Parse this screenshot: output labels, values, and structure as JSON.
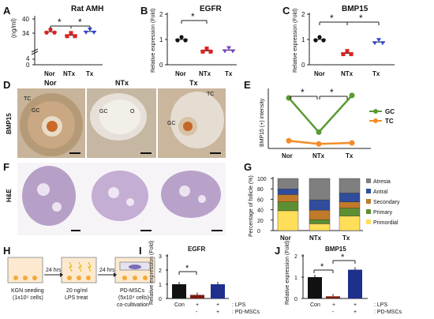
{
  "panel_labels": [
    "A",
    "B",
    "C",
    "D",
    "E",
    "F",
    "G",
    "H",
    "I",
    "J"
  ],
  "panelA": {
    "title": "Rat AMH",
    "ylabel": "(ng/ml)",
    "yticks": [
      "40",
      "34",
      "4",
      "0"
    ],
    "sig": [
      "*",
      "*"
    ]
  },
  "panelB": {
    "title": "EGFR",
    "ylabel": "Relative expression\n(Fold)",
    "yticks": [
      "2",
      "1",
      "0"
    ],
    "sig": [
      "*"
    ]
  },
  "panelC": {
    "title": "BMP15",
    "ylabel": "Relative expression\n(Fold)",
    "yticks": [
      "2",
      "1",
      "0"
    ],
    "sig": [
      "*",
      "*"
    ]
  },
  "groups": [
    "Nor",
    "NTx",
    "Tx"
  ],
  "panelD": {
    "row_label": "BMP15",
    "cols": [
      "Nor",
      "NTx",
      "Tx"
    ],
    "annotations": [
      "TC",
      "GC",
      "O"
    ]
  },
  "panelF": {
    "row_label": "H&E"
  },
  "panelE": {
    "ylabel": "BMP15 (+) intensity",
    "legend": [
      "GC",
      "TC"
    ],
    "colors": [
      "#5b9a32",
      "#f28c28"
    ],
    "sig": [
      "*",
      "*"
    ]
  },
  "panelG": {
    "ylabel": "Percentage of follicle\n(%)",
    "yticks": [
      "100",
      "80",
      "60",
      "40",
      "20",
      "0"
    ],
    "legend": [
      "Atresia",
      "Antral",
      "Secondary",
      "Primary",
      "Primordial"
    ],
    "colors": [
      "#7f7f7f",
      "#2f4d9c",
      "#c07a2a",
      "#5e8f32",
      "#ffde5a"
    ]
  },
  "panelH": {
    "steps": [
      "KGN seeding\n(1x10⁵ cells)",
      "20 ng/ml\nLPS treat",
      "PD-MSCs\n(5x10⁴ cells)\nco-cultivation"
    ],
    "arrows": [
      "24 hrs",
      "24 hrs"
    ]
  },
  "panelI": {
    "title": "EGFR",
    "ylabel": "Relative expression\n(Fold)",
    "yticks": [
      "3",
      "2",
      "1",
      "0"
    ],
    "sig": [
      "*"
    ],
    "rows": [
      {
        "name": "LPS",
        "marks": [
          "",
          "+",
          "+"
        ]
      },
      {
        "name": "PD-MSCs",
        "marks": [
          "",
          "-",
          "+"
        ]
      }
    ],
    "con": "Con"
  },
  "panelJ": {
    "title": "BMP15",
    "ylabel": "Relative expression\n(Fold)",
    "yticks": [
      "2",
      "1",
      "0"
    ],
    "sig": [
      "*",
      "*"
    ],
    "rows": [
      {
        "name": "LPS",
        "marks": [
          "",
          "+",
          "+"
        ]
      },
      {
        "name": "PD-MSCs",
        "marks": [
          "",
          "-",
          "+"
        ]
      }
    ],
    "con": "Con"
  },
  "chart_data": [
    {
      "id": "A",
      "type": "scatter",
      "title": "Rat AMH",
      "ylabel": "(ng/ml)",
      "categories": [
        "Nor",
        "NTx",
        "Tx"
      ],
      "series": [
        {
          "values": [
            34.5,
            33.2,
            34.6
          ]
        }
      ]
    },
    {
      "id": "B",
      "type": "scatter",
      "title": "EGFR",
      "ylabel": "Relative expression (Fold)",
      "categories": [
        "Nor",
        "NTx",
        "Tx"
      ],
      "ylim": [
        0,
        2
      ],
      "series": [
        {
          "values": [
            1.0,
            0.55,
            0.58
          ]
        }
      ]
    },
    {
      "id": "C",
      "type": "scatter",
      "title": "BMP15",
      "ylabel": "Relative expression (Fold)",
      "categories": [
        "Nor",
        "NTx",
        "Tx"
      ],
      "ylim": [
        0,
        2
      ],
      "series": [
        {
          "values": [
            1.0,
            0.45,
            0.9
          ]
        }
      ]
    },
    {
      "id": "E",
      "type": "line",
      "ylabel": "BMP15 (+) intensity",
      "categories": [
        "Nor",
        "NTx",
        "Tx"
      ],
      "series": [
        {
          "name": "GC",
          "values": [
            20,
            6,
            21
          ]
        },
        {
          "name": "TC",
          "values": [
            2.5,
            1.2,
            1.6
          ]
        }
      ]
    },
    {
      "id": "G",
      "type": "bar",
      "ylabel": "Percentage of follicle (%)",
      "categories": [
        "Nor",
        "NTx",
        "Tx"
      ],
      "ylim": [
        0,
        100
      ],
      "series": [
        {
          "name": "Primordial",
          "values": [
            38,
            13,
            28
          ]
        },
        {
          "name": "Primary",
          "values": [
            17,
            8,
            15
          ]
        },
        {
          "name": "Secondary",
          "values": [
            14,
            18,
            12
          ]
        },
        {
          "name": "Antral",
          "values": [
            11,
            20,
            17
          ]
        },
        {
          "name": "Atresia",
          "values": [
            20,
            41,
            28
          ]
        }
      ]
    },
    {
      "id": "I",
      "type": "bar",
      "title": "EGFR",
      "ylabel": "Relative expression (Fold)",
      "categories": [
        "Con",
        "LPS",
        "LPS+PD-MSCs"
      ],
      "ylim": [
        0,
        3
      ],
      "series": [
        {
          "values": [
            1.0,
            0.25,
            1.0
          ]
        }
      ]
    },
    {
      "id": "J",
      "type": "bar",
      "title": "BMP15",
      "ylabel": "Relative expression (Fold)",
      "categories": [
        "Con",
        "LPS",
        "LPS+PD-MSCs"
      ],
      "ylim": [
        0,
        2
      ],
      "series": [
        {
          "values": [
            1.0,
            0.1,
            1.35
          ]
        }
      ]
    }
  ]
}
